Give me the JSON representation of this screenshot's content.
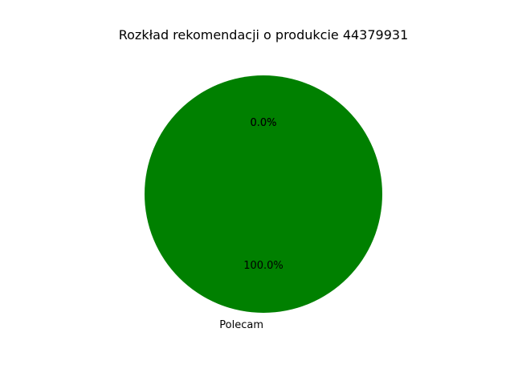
{
  "chart_data": {
    "type": "pie",
    "title": "Rozkład rekomendacji o produkcie 44379931",
    "slices": [
      {
        "label": "Polecam",
        "value": 100.0,
        "pct_label": "100.0%",
        "color": "#008000"
      },
      {
        "label": "",
        "value": 0.0,
        "pct_label": "0.0%",
        "color": "#ff0000"
      },
      {
        "label": "",
        "value": 0.0,
        "pct_label": "0.0%",
        "color": "#ffa500"
      }
    ],
    "start_angle_deg": 90,
    "counterclock": true
  }
}
